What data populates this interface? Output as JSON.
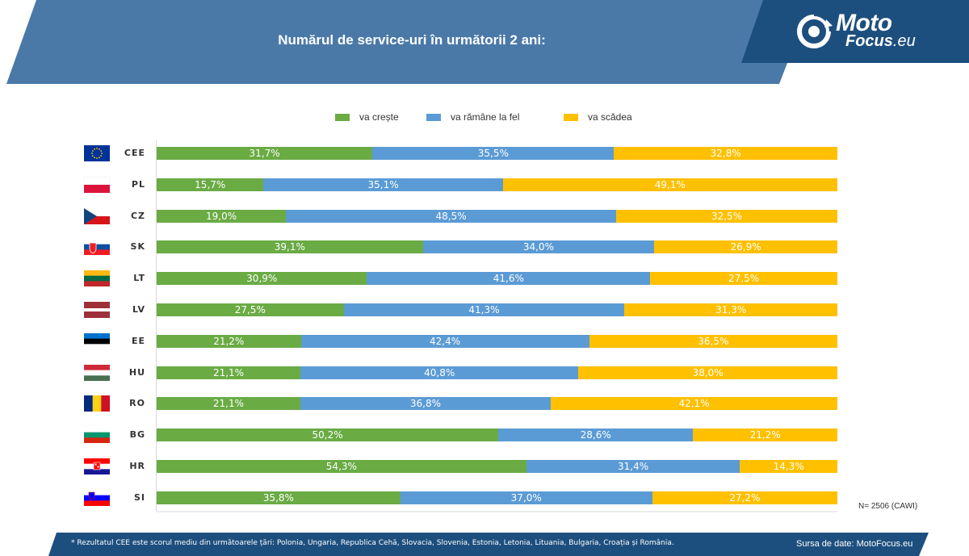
{
  "title": "Numărul de service-uri în următorii 2 ani:",
  "logo": {
    "line1": "Moto",
    "line2": "Focus",
    "line2_suffix": ".eu"
  },
  "colors": {
    "header": "#4a79a8",
    "footer": "#1d4f7e",
    "logo_bg": "#1d4f7e",
    "green": "#6aab44",
    "blue": "#5b9bd5",
    "yellow": "#ffc000"
  },
  "note": "N= 2506 (CAWI)",
  "footnote": "* Rezultatul CEE este scorul mediu din următoarele țări: Polonia, Ungaria, Republica Cehă, Slovacia, Slovenia, Estonia, Letonia, Lituania, Bulgaria, Croația și România.",
  "source": "Sursa de date: MotoFocus.eu",
  "chart_data": {
    "type": "bar",
    "orientation": "horizontal",
    "stacked": "100%",
    "categories": [
      "CEE",
      "PL",
      "CZ",
      "SK",
      "LT",
      "LV",
      "EE",
      "HU",
      "RO",
      "BG",
      "HR",
      "SI"
    ],
    "flags": [
      "eu-flag-icon",
      "poland-flag-icon",
      "czechia-flag-icon",
      "slovakia-flag-icon",
      "lithuania-flag-icon",
      "latvia-flag-icon",
      "estonia-flag-icon",
      "hungary-flag-icon",
      "romania-flag-icon",
      "bulgaria-flag-icon",
      "croatia-flag-icon",
      "slovenia-flag-icon"
    ],
    "series": [
      {
        "name": "va crește",
        "color": "#6aab44",
        "values": [
          31.7,
          15.7,
          19.0,
          39.1,
          30.9,
          27.5,
          21.2,
          21.1,
          21.1,
          50.2,
          54.3,
          35.8
        ],
        "labels": [
          "31,7%",
          "15,7%",
          "19,0%",
          "39,1%",
          "30,9%",
          "27,5%",
          "21,2%",
          "21,1%",
          "21,1%",
          "50,2%",
          "54,3%",
          "35,8%"
        ]
      },
      {
        "name": "va rămâne la fel",
        "color": "#5b9bd5",
        "values": [
          35.5,
          35.1,
          48.5,
          34.0,
          41.6,
          41.3,
          42.4,
          40.8,
          36.8,
          28.6,
          31.4,
          37.0
        ],
        "labels": [
          "35,5%",
          "35,1%",
          "48,5%",
          "34,0%",
          "41,6%",
          "41,3%",
          "42,4%",
          "40,8%",
          "36,8%",
          "28,6%",
          "31,4%",
          "37,0%"
        ]
      },
      {
        "name": "va scădea",
        "color": "#ffc000",
        "values": [
          32.8,
          49.1,
          32.5,
          26.9,
          27.5,
          31.3,
          36.5,
          38.0,
          42.1,
          21.2,
          14.3,
          27.2
        ],
        "labels": [
          "32,8%",
          "49,1%",
          "32,5%",
          "26,9%",
          "27,5%",
          "31,3%",
          "36,5%",
          "38,0%",
          "42,1%",
          "21,2%",
          "14,3%",
          "27,2%"
        ]
      }
    ],
    "legend_position": "top-center",
    "grid": false
  }
}
